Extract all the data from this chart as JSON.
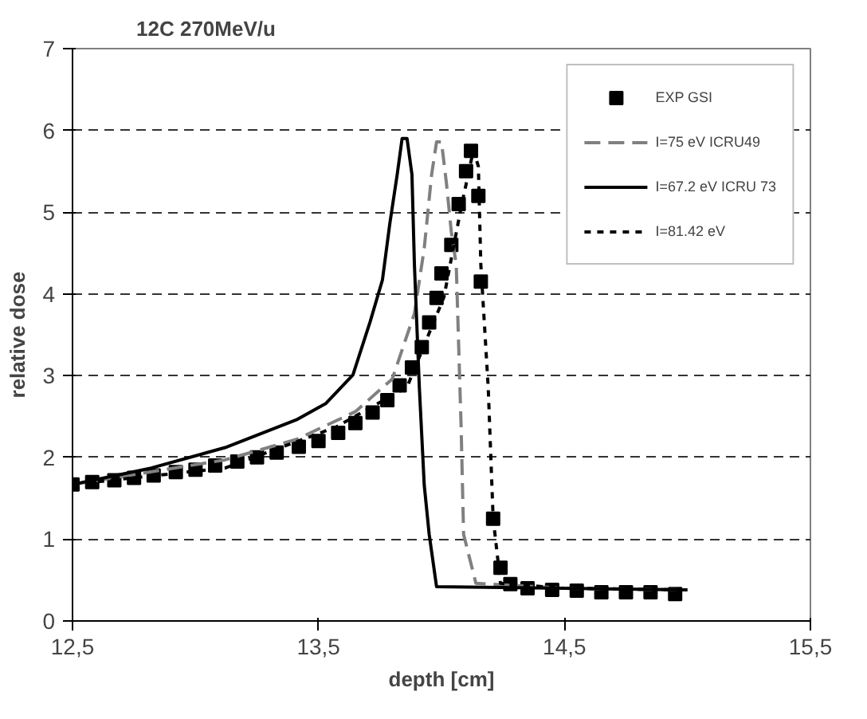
{
  "chart_data": {
    "type": "line",
    "title": "12C 270MeV/u",
    "xlabel": "depth [cm]",
    "ylabel": "relative dose",
    "xlim": [
      12.5,
      15.5
    ],
    "ylim": [
      0,
      7
    ],
    "xticks": [
      {
        "value": 12.5,
        "label": "12,5"
      },
      {
        "value": 13.5,
        "label": "13,5"
      },
      {
        "value": 14.5,
        "label": "14,5"
      },
      {
        "value": 15.5,
        "label": "15,5"
      }
    ],
    "yticks": [
      0,
      1,
      2,
      3,
      4,
      5,
      6,
      7
    ],
    "grid": "y",
    "legend": "top right",
    "series": [
      {
        "name": "EXP GSI",
        "type": "scatter",
        "marker": "square",
        "color": "#000000",
        "x": [
          12.5,
          12.58,
          12.67,
          12.75,
          12.83,
          12.92,
          13.0,
          13.08,
          13.17,
          13.25,
          13.33,
          13.42,
          13.5,
          13.58,
          13.65,
          13.72,
          13.78,
          13.83,
          13.88,
          13.92,
          13.95,
          13.98,
          14.0,
          14.04,
          14.07,
          14.1,
          14.12,
          14.15,
          14.16,
          14.21,
          14.24,
          14.28,
          14.35,
          14.45,
          14.55,
          14.65,
          14.75,
          14.85,
          14.95
        ],
        "values": [
          1.67,
          1.7,
          1.72,
          1.75,
          1.78,
          1.82,
          1.85,
          1.9,
          1.95,
          2.0,
          2.06,
          2.13,
          2.2,
          2.3,
          2.42,
          2.55,
          2.7,
          2.88,
          3.1,
          3.35,
          3.65,
          3.95,
          4.25,
          4.6,
          5.1,
          5.5,
          5.75,
          5.2,
          4.15,
          1.25,
          0.65,
          0.45,
          0.4,
          0.38,
          0.37,
          0.35,
          0.35,
          0.35,
          0.33
        ]
      },
      {
        "name": "I=75 eV ICRU49",
        "line_style": "dashed",
        "color": "#808080",
        "x": [
          12.5,
          13.12,
          13.41,
          13.65,
          13.8,
          13.89,
          13.93,
          13.96,
          13.98,
          14.0,
          14.02,
          14.04,
          14.06,
          14.08,
          14.09,
          14.14,
          14.5,
          15.0
        ],
        "values": [
          1.67,
          1.97,
          2.22,
          2.56,
          2.96,
          3.76,
          4.56,
          5.46,
          5.86,
          5.86,
          5.36,
          4.76,
          4.36,
          2.36,
          1.06,
          0.46,
          0.4,
          0.38
        ]
      },
      {
        "name": "I=67.2 eV ICRU 73",
        "line_style": "solid",
        "color": "#000000",
        "x": [
          12.5,
          12.82,
          13.12,
          13.41,
          13.53,
          13.64,
          13.71,
          13.76,
          13.79,
          13.82,
          13.84,
          13.86,
          13.88,
          13.89,
          13.91,
          13.93,
          13.95,
          13.98,
          14.5,
          15.0
        ],
        "values": [
          1.67,
          1.87,
          2.12,
          2.46,
          2.66,
          3.01,
          3.66,
          4.17,
          4.86,
          5.46,
          5.9,
          5.9,
          5.46,
          4.36,
          2.86,
          1.66,
          1.06,
          0.42,
          0.4,
          0.38
        ]
      },
      {
        "name": "I=81.42 eV",
        "line_style": "dotted",
        "color": "#000000",
        "x": [
          12.5,
          13.12,
          13.57,
          13.86,
          14.01,
          14.08,
          14.13,
          14.15,
          14.16,
          14.19,
          14.21,
          14.24,
          14.5,
          15.0
        ],
        "values": [
          1.67,
          1.87,
          2.37,
          2.86,
          3.96,
          5.06,
          5.76,
          5.56,
          4.36,
          2.86,
          1.26,
          0.46,
          0.4,
          0.38
        ]
      }
    ]
  }
}
